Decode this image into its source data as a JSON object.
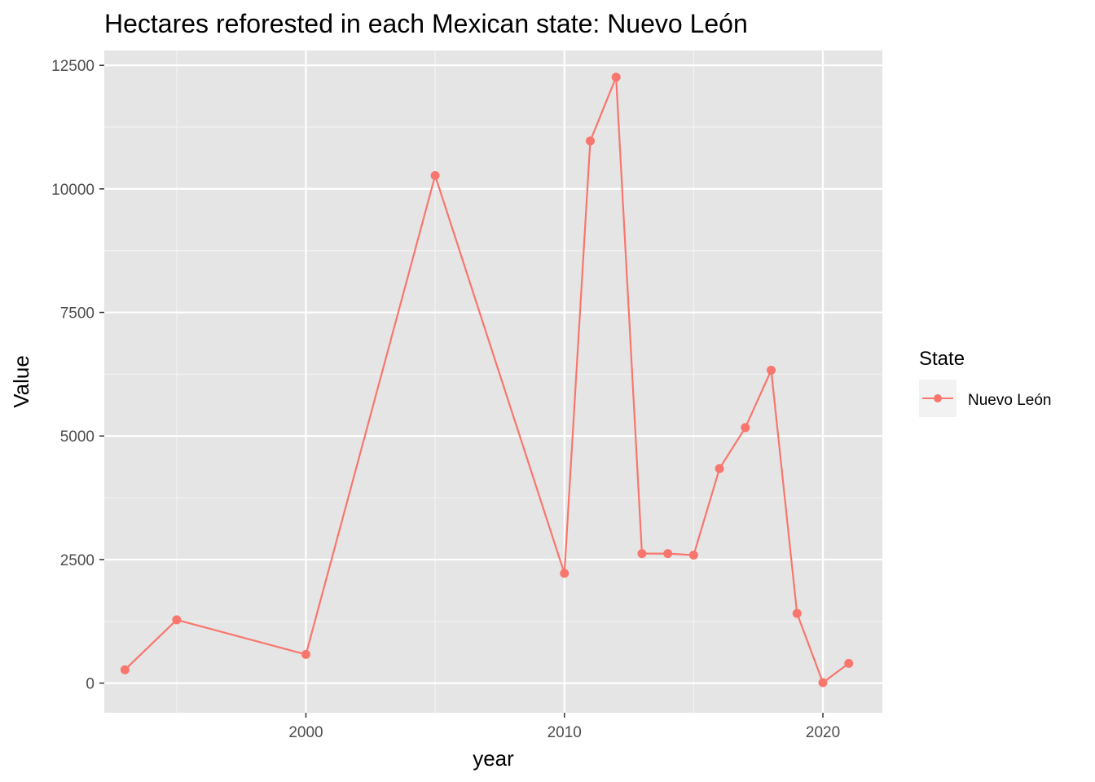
{
  "chart_data": {
    "type": "line",
    "title": "Hectares reforested in each Mexican state: Nuevo León",
    "xlabel": "year",
    "ylabel": "Value",
    "xlim": [
      1992.2,
      2022.3
    ],
    "ylim": [
      -600,
      12800
    ],
    "x_ticks": [
      2000,
      2010,
      2020
    ],
    "y_ticks": [
      0,
      2500,
      5000,
      7500,
      10000,
      12500
    ],
    "grid": true,
    "legend": {
      "title": "State",
      "position": "right"
    },
    "series": [
      {
        "name": "Nuevo León",
        "color": "#f8766d",
        "x": [
          1993,
          1995,
          2000,
          2005,
          2010,
          2011,
          2012,
          2013,
          2014,
          2015,
          2016,
          2017,
          2018,
          2019,
          2020,
          2021
        ],
        "y": [
          270,
          1280,
          580,
          10270,
          2220,
          10970,
          12260,
          2620,
          2620,
          2590,
          4340,
          5170,
          6330,
          1410,
          10,
          400
        ]
      }
    ]
  }
}
